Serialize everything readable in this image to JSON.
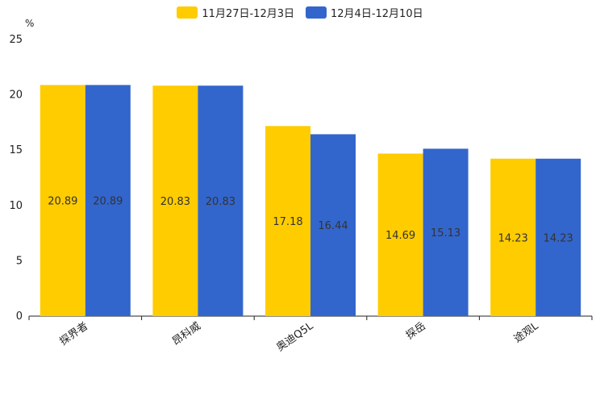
{
  "chart_data": {
    "type": "bar",
    "ylabel": "%",
    "ylim": [
      0,
      25
    ],
    "yticks": [
      0,
      5,
      10,
      15,
      20,
      25
    ],
    "categories": [
      "探界者",
      "昂科威",
      "奥迪Q5L",
      "探岳",
      "途观L"
    ],
    "series": [
      {
        "name": "11月27日-12月3日",
        "color": "#FFCC00",
        "values": [
          20.89,
          20.83,
          17.18,
          14.69,
          14.23
        ]
      },
      {
        "name": "12月4日-12月10日",
        "color": "#3366CC",
        "values": [
          20.89,
          20.83,
          16.44,
          15.13,
          14.23
        ]
      }
    ],
    "legend_position": "top-center",
    "grid": false
  }
}
